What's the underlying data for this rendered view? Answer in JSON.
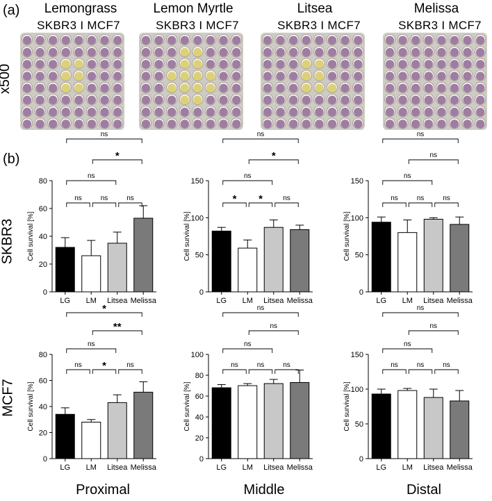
{
  "panel_a": {
    "label": "(a)",
    "magnification": "x500",
    "oils": [
      "Lemongrass",
      "Lemon Myrtle",
      "Litsea",
      "Melissa"
    ],
    "cell_line_header": "SKBR3 I MCF7",
    "colors": {
      "purple_well": "#8a5f8e",
      "yellow_well": "#d8cb62",
      "plate_bg": "#cfcbc4"
    }
  },
  "panel_b": {
    "label": "(b)",
    "row_labels": [
      "SKBR3",
      "MCF7"
    ],
    "column_labels": [
      "Proximal",
      "Middle",
      "Distal"
    ]
  },
  "chart_data": [
    {
      "id": "skbr3-proximal",
      "type": "bar",
      "row": "SKBR3",
      "region": "Proximal",
      "categories": [
        "LG",
        "LM",
        "Litsea",
        "Melissa"
      ],
      "values": [
        32,
        26,
        35,
        53
      ],
      "errors": [
        7,
        11,
        8,
        9
      ],
      "ylabel": "Cell survival [%]",
      "ylim": [
        0,
        80
      ],
      "yticks": [
        0,
        20,
        40,
        60,
        80
      ],
      "comparisons": [
        {
          "a": 0,
          "b": 1,
          "label": "ns"
        },
        {
          "a": 1,
          "b": 2,
          "label": "ns"
        },
        {
          "a": 2,
          "b": 3,
          "label": "ns"
        },
        {
          "a": 0,
          "b": 2,
          "label": "ns"
        },
        {
          "a": 1,
          "b": 3,
          "label": "*"
        },
        {
          "a": 0,
          "b": 3,
          "label": "ns"
        }
      ]
    },
    {
      "id": "skbr3-middle",
      "type": "bar",
      "row": "SKBR3",
      "region": "Middle",
      "categories": [
        "LG",
        "LM",
        "Litsea",
        "Melissa"
      ],
      "values": [
        82,
        59,
        87,
        84
      ],
      "errors": [
        5,
        11,
        10,
        6
      ],
      "ylabel": "Cell survival [%]",
      "ylim": [
        0,
        150
      ],
      "yticks": [
        0,
        50,
        100,
        150
      ],
      "comparisons": [
        {
          "a": 0,
          "b": 1,
          "label": "*"
        },
        {
          "a": 1,
          "b": 2,
          "label": "*"
        },
        {
          "a": 2,
          "b": 3,
          "label": "ns"
        },
        {
          "a": 0,
          "b": 2,
          "label": "ns"
        },
        {
          "a": 1,
          "b": 3,
          "label": "*"
        },
        {
          "a": 0,
          "b": 3,
          "label": "ns"
        }
      ]
    },
    {
      "id": "skbr3-distal",
      "type": "bar",
      "row": "SKBR3",
      "region": "Distal",
      "categories": [
        "LG",
        "LM",
        "Litsea",
        "Melissa"
      ],
      "values": [
        94,
        80,
        98,
        91
      ],
      "errors": [
        7,
        17,
        2,
        10
      ],
      "ylabel": "Cell survival [%]",
      "ylim": [
        0,
        150
      ],
      "yticks": [
        0,
        50,
        100,
        150
      ],
      "comparisons": [
        {
          "a": 0,
          "b": 1,
          "label": "ns"
        },
        {
          "a": 1,
          "b": 2,
          "label": "ns"
        },
        {
          "a": 2,
          "b": 3,
          "label": "ns"
        },
        {
          "a": 0,
          "b": 2,
          "label": "ns"
        },
        {
          "a": 1,
          "b": 3,
          "label": "ns"
        },
        {
          "a": 0,
          "b": 3,
          "label": "ns"
        }
      ]
    },
    {
      "id": "mcf7-proximal",
      "type": "bar",
      "row": "MCF7",
      "region": "Proximal",
      "categories": [
        "LG",
        "LM",
        "Litsea",
        "Melissa"
      ],
      "values": [
        34,
        28,
        43,
        51
      ],
      "errors": [
        5,
        2,
        6,
        8
      ],
      "ylabel": "Cell survival [%]",
      "ylim": [
        0,
        80
      ],
      "yticks": [
        0,
        20,
        40,
        60,
        80
      ],
      "comparisons": [
        {
          "a": 0,
          "b": 1,
          "label": "ns"
        },
        {
          "a": 1,
          "b": 2,
          "label": "*"
        },
        {
          "a": 2,
          "b": 3,
          "label": "ns"
        },
        {
          "a": 0,
          "b": 2,
          "label": "ns"
        },
        {
          "a": 1,
          "b": 3,
          "label": "**"
        },
        {
          "a": 0,
          "b": 3,
          "label": "*"
        }
      ]
    },
    {
      "id": "mcf7-middle",
      "type": "bar",
      "row": "MCF7",
      "region": "Middle",
      "categories": [
        "LG",
        "LM",
        "Litsea",
        "Melissa"
      ],
      "values": [
        68,
        70,
        72,
        73
      ],
      "errors": [
        3,
        2,
        4,
        12
      ],
      "ylabel": "Cell survival [%]",
      "ylim": [
        0,
        100
      ],
      "yticks": [
        0,
        20,
        40,
        60,
        80,
        100
      ],
      "comparisons": [
        {
          "a": 0,
          "b": 1,
          "label": "ns"
        },
        {
          "a": 1,
          "b": 2,
          "label": "ns"
        },
        {
          "a": 2,
          "b": 3,
          "label": "ns"
        },
        {
          "a": 0,
          "b": 2,
          "label": "ns"
        },
        {
          "a": 1,
          "b": 3,
          "label": "ns"
        },
        {
          "a": 0,
          "b": 3,
          "label": "ns"
        }
      ]
    },
    {
      "id": "mcf7-distal",
      "type": "bar",
      "row": "MCF7",
      "region": "Distal",
      "categories": [
        "LG",
        "LM",
        "Litsea",
        "Melissa"
      ],
      "values": [
        93,
        98,
        88,
        83
      ],
      "errors": [
        7,
        3,
        12,
        15
      ],
      "ylabel": "Cell survival [%]",
      "ylim": [
        0,
        150
      ],
      "yticks": [
        0,
        50,
        100,
        150
      ],
      "comparisons": [
        {
          "a": 0,
          "b": 1,
          "label": "ns"
        },
        {
          "a": 1,
          "b": 2,
          "label": "ns"
        },
        {
          "a": 2,
          "b": 3,
          "label": "ns"
        },
        {
          "a": 0,
          "b": 2,
          "label": "ns"
        },
        {
          "a": 1,
          "b": 3,
          "label": "ns"
        },
        {
          "a": 0,
          "b": 3,
          "label": "ns"
        }
      ]
    }
  ],
  "bar_colors": [
    "#000000",
    "#ffffff",
    "#c8c8c8",
    "#7a7a7a"
  ]
}
